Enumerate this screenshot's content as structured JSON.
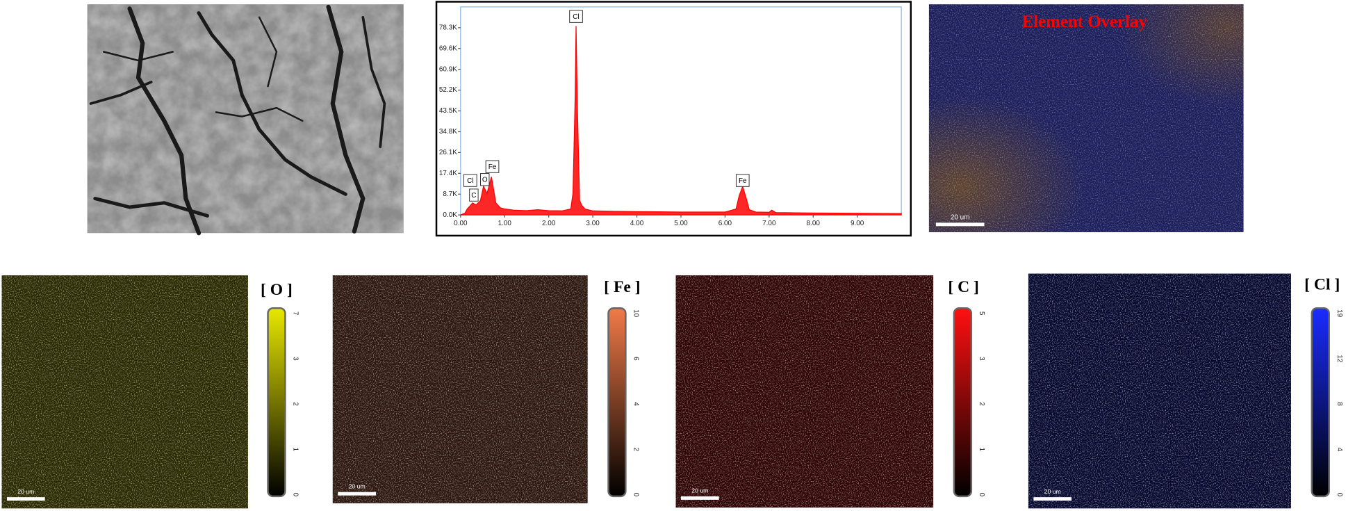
{
  "chart_data": {
    "type": "area",
    "x": [
      0.0,
      0.1,
      0.15,
      0.2,
      0.27,
      0.35,
      0.45,
      0.52,
      0.6,
      0.7,
      0.8,
      0.9,
      1.0,
      1.2,
      1.5,
      1.75,
      2.0,
      2.3,
      2.5,
      2.55,
      2.6,
      2.62,
      2.65,
      2.7,
      2.75,
      2.82,
      3.0,
      3.5,
      4.0,
      4.5,
      5.0,
      5.5,
      6.0,
      6.25,
      6.32,
      6.4,
      6.48,
      6.55,
      6.7,
      7.0,
      7.06,
      7.15,
      7.5,
      8.0,
      9.0,
      10.0
    ],
    "values": [
      0,
      800,
      2500,
      3500,
      5000,
      4200,
      6000,
      12000,
      9000,
      15900,
      5000,
      3000,
      2500,
      2000,
      1800,
      2200,
      1800,
      1700,
      2500,
      9000,
      50000,
      79000,
      45000,
      6000,
      4000,
      2500,
      1700,
      1500,
      1400,
      1300,
      1200,
      1200,
      1200,
      2500,
      8000,
      11900,
      7000,
      2200,
      1200,
      1100,
      2000,
      1000,
      900,
      800,
      700,
      600
    ],
    "color": "#ff0000",
    "xlim": [
      0,
      10
    ],
    "ylim": [
      0,
      87000
    ],
    "xticks": [
      {
        "value": 0,
        "label": "0.00"
      },
      {
        "value": 1,
        "label": "1.00"
      },
      {
        "value": 2,
        "label": "2.00"
      },
      {
        "value": 3,
        "label": "3.00"
      },
      {
        "value": 4,
        "label": "4.00"
      },
      {
        "value": 5,
        "label": "5.00"
      },
      {
        "value": 6,
        "label": "6.00"
      },
      {
        "value": 7,
        "label": "7.00"
      },
      {
        "value": 8,
        "label": "8.00"
      },
      {
        "value": 9,
        "label": "9.00"
      }
    ],
    "yticks": [
      {
        "value": 0,
        "label": "0.0K"
      },
      {
        "value": 8700,
        "label": "8.7K"
      },
      {
        "value": 17400,
        "label": "17.4K"
      },
      {
        "value": 26100,
        "label": "26.1K"
      },
      {
        "value": 34800,
        "label": "34.8K"
      },
      {
        "value": 43500,
        "label": "43.5K"
      },
      {
        "value": 52200,
        "label": "52.2K"
      },
      {
        "value": 60900,
        "label": "60.9K"
      },
      {
        "value": 69600,
        "label": "69.6K"
      },
      {
        "value": 78300,
        "label": "78.3K"
      }
    ],
    "annotations": [
      {
        "text": "Cl",
        "x": 2.62,
        "y": 83000
      },
      {
        "text": "C",
        "x": 0.3,
        "y": 8300
      },
      {
        "text": "Cl",
        "x": 0.22,
        "y": 14400
      },
      {
        "text": "O",
        "x": 0.55,
        "y": 14800
      },
      {
        "text": "Fe",
        "x": 0.72,
        "y": 20200
      },
      {
        "text": "Fe",
        "x": 6.4,
        "y": 14400
      }
    ]
  },
  "panels": {
    "overlay": {
      "title": "Element Overlay",
      "scale_bar": "20 um"
    },
    "maps": [
      {
        "label": "[ O ]",
        "color": "#e8e800",
        "ticks": [
          "0",
          "1",
          "2",
          "3",
          "7"
        ],
        "scale_bar": "20 um"
      },
      {
        "label": "[ Fe ]",
        "color": "#f07a48",
        "ticks": [
          "0",
          "2",
          "4",
          "6",
          "10"
        ],
        "scale_bar": "20 um"
      },
      {
        "label": "[ C ]",
        "color": "#ff1010",
        "ticks": [
          "0",
          "1",
          "2",
          "3",
          "5"
        ],
        "scale_bar": "20 um"
      },
      {
        "label": "[ Cl ]",
        "color": "#1a2cff",
        "ticks": [
          "0",
          "4",
          "8",
          "12",
          "19"
        ],
        "scale_bar": "20 um"
      }
    ]
  }
}
